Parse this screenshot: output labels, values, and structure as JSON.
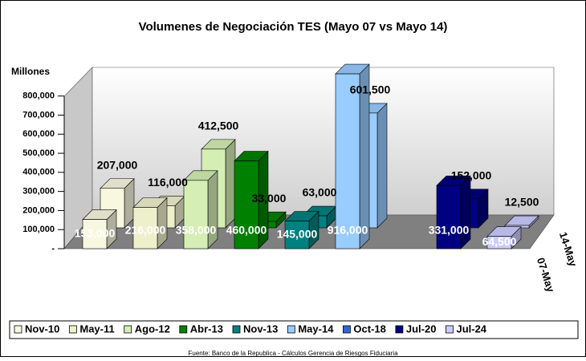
{
  "chart_data": {
    "type": "bar3d",
    "title": "Volumenes de Negociación TES (Mayo 07 vs Mayo 14)",
    "y_label": "Millones",
    "source": "Fuente: Banco de la Republica - Cálculos Gerencia de Riesgos Fiduciaria",
    "categories": [
      "07-May",
      "14-May"
    ],
    "ylim": [
      0,
      950000
    ],
    "yticks": [
      {
        "value": 0,
        "label": "-"
      },
      {
        "value": 100000,
        "label": "100,000"
      },
      {
        "value": 200000,
        "label": "200,000"
      },
      {
        "value": 300000,
        "label": "300,000"
      },
      {
        "value": 400000,
        "label": "400,000"
      },
      {
        "value": 500000,
        "label": "500,000"
      },
      {
        "value": 600000,
        "label": "600,000"
      },
      {
        "value": 700000,
        "label": "700,000"
      },
      {
        "value": 800000,
        "label": "800,000"
      }
    ],
    "legend": "bottom",
    "series": [
      {
        "name": "Nov-10",
        "color": "#f8f8e0",
        "values": [
          153000,
          207000
        ],
        "value_labels": [
          "153,000",
          "207,000"
        ]
      },
      {
        "name": "May-11",
        "color": "#eef0cc",
        "values": [
          216000,
          116000
        ],
        "value_labels": [
          "216,000",
          "116,000"
        ]
      },
      {
        "name": "Ago-12",
        "color": "#d4eeb4",
        "values": [
          358000,
          412500
        ],
        "value_labels": [
          "358,000",
          "412,500"
        ]
      },
      {
        "name": "Abr-13",
        "color": "#008000",
        "values": [
          460000,
          33000
        ],
        "value_labels": [
          "460,000",
          "33,000"
        ]
      },
      {
        "name": "Nov-13",
        "color": "#008080",
        "values": [
          145000,
          63000
        ],
        "value_labels": [
          "145,000",
          "63,000"
        ]
      },
      {
        "name": "May-14",
        "color": "#99ccff",
        "values": [
          916000,
          601500
        ],
        "value_labels": [
          "916,000",
          "601,500"
        ]
      },
      {
        "name": "Oct-18",
        "color": "#3366cc",
        "values": [
          null,
          null
        ],
        "value_labels": [
          null,
          null
        ]
      },
      {
        "name": "Jul-20",
        "color": "#000080",
        "values": [
          331000,
          152000
        ],
        "value_labels": [
          "331,000",
          "152,000"
        ]
      },
      {
        "name": "Jul-24",
        "color": "#ccccff",
        "values": [
          64500,
          12500
        ],
        "value_labels": [
          "64,500",
          "12,500"
        ]
      }
    ]
  }
}
